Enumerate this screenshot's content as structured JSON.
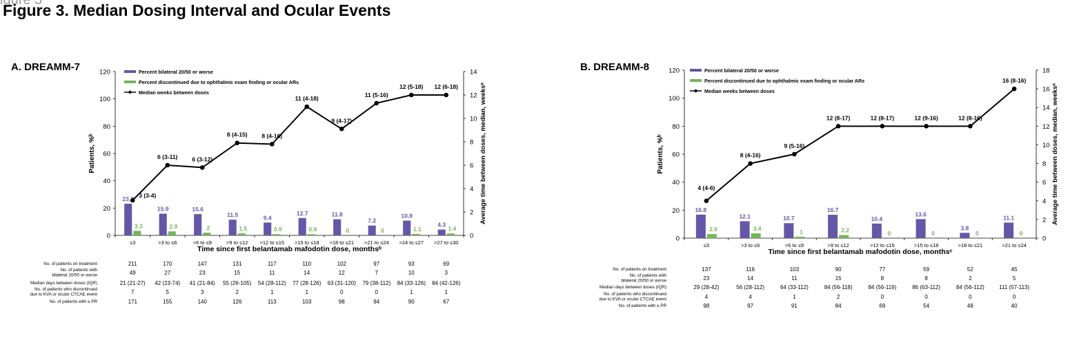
{
  "ghost_text": "igure 3",
  "title": "Figure 3. Median Dosing Interval and Ocular Events",
  "colors": {
    "bilateral": "#6557a8",
    "discontinued": "#73b55b",
    "median": "#000000"
  },
  "chart_data": [
    {
      "panel_title": "A. DREAMM-7",
      "type": "bar",
      "categories": [
        "≤3",
        ">3 to ≤6",
        ">6 to ≤9",
        ">9 to ≤12",
        ">12 to ≤15",
        ">15 to ≤18",
        ">18 to ≤21",
        ">21 to ≤24",
        ">24 to ≤27",
        ">27 to ≤30"
      ],
      "series": [
        {
          "name": "Percent bilateral 20/50 or worse",
          "kind": "bar",
          "axis": "left",
          "values": [
            23.2,
            15.9,
            15.6,
            11.5,
            9.4,
            12.7,
            11.8,
            7.2,
            10.8,
            4.3
          ],
          "labels": [
            "23.2",
            "15.9",
            "15.6",
            "11.5",
            "9.4",
            "12.7",
            "11.8",
            "7.2",
            "10.8",
            "4.3"
          ]
        },
        {
          "name": "Percent discontinued due to ophthalmic exam finding or ocular ARs",
          "kind": "bar",
          "axis": "left",
          "values": [
            3.3,
            2.9,
            2,
            1.5,
            0.9,
            0.9,
            0,
            0,
            1.1,
            1.4
          ],
          "labels": [
            "3.3",
            "2.9",
            "2",
            "1.5",
            "0.9",
            "0.9",
            "0",
            "0",
            "1.1",
            "1.4"
          ]
        },
        {
          "name": "Median weeks between doses",
          "kind": "line",
          "axis": "right",
          "values": [
            3,
            6,
            5.8,
            7.9,
            7.8,
            11,
            9.1,
            11.3,
            12,
            12
          ],
          "labels": [
            "3 (3-4)",
            "6 (3-11)",
            "6 (3-12)",
            "8 (4-15)",
            "8 (4-16)",
            "11 (4-18)",
            "9 (4-17)",
            "11 (5-16)",
            "12 (5-18)",
            "12 (6-18)"
          ]
        }
      ],
      "ylabel": "Patients, %ᵇ",
      "y2label": "Average time between doses, median, weeksᵃ",
      "xlabel": "Time since first belantamab mafodotin dose, monthsᵇ",
      "ylim": [
        0,
        120
      ],
      "yticks": [
        "0",
        "20",
        "40",
        "60",
        "80",
        "100",
        "120"
      ],
      "y2lim": [
        0,
        14
      ],
      "y2ticks": [
        "0",
        "2",
        "4",
        "6",
        "8",
        "10",
        "12",
        "14"
      ],
      "legend_position": "top-left",
      "table": {
        "row_labels": [
          "No. of patients on treatment",
          "No. of patients with\nbilateral 20/50 or worse",
          "Median days between doses (IQR)",
          "No. of patients who discontinued\ndue to KVA or ocular CTCAE event",
          "No. of patients with ≥ PR"
        ],
        "rows": [
          [
            "211",
            "170",
            "147",
            "131",
            "117",
            "110",
            "102",
            "97",
            "93",
            "69"
          ],
          [
            "49",
            "27",
            "23",
            "15",
            "11",
            "14",
            "12",
            "7",
            "10",
            "3"
          ],
          [
            "21 (21-27)",
            "42 (23-74)",
            "41 (21-84)",
            "55 (26-105)",
            "54 (28-112)",
            "77 (28-126)",
            "63 (31-120)",
            "79 (38-112)",
            "84 (33-126)",
            "84 (42-126)"
          ],
          [
            "7",
            "5",
            "3",
            "2",
            "1",
            "1",
            "0",
            "0",
            "1",
            "1"
          ],
          [
            "171",
            "155",
            "140",
            "126",
            "113",
            "103",
            "98",
            "94",
            "90",
            "67"
          ]
        ]
      }
    },
    {
      "panel_title": "B. DREAMM-8",
      "type": "bar",
      "categories": [
        "≤3",
        ">3 to ≤6",
        ">6 to ≤9",
        ">9 to ≤12",
        ">12 to ≤15",
        ">15 to ≤18",
        ">18 to ≤21",
        ">21 to ≤24"
      ],
      "series": [
        {
          "name": "Percent bilateral 20/50 or worse",
          "kind": "bar",
          "axis": "left",
          "values": [
            16.8,
            12.1,
            10.7,
            16.7,
            10.4,
            13.6,
            3.8,
            11.1
          ],
          "labels": [
            "16.8",
            "12.1",
            "10.7",
            "16.7",
            "10.4",
            "13.6",
            "3.8",
            "11.1"
          ]
        },
        {
          "name": "Percent discontinued due to ophthalmic exam finding or ocular ARs",
          "kind": "bar",
          "axis": "left",
          "values": [
            2.9,
            3.4,
            1,
            2.2,
            0,
            0,
            0,
            0
          ],
          "labels": [
            "2.9",
            "3.4",
            "1",
            "2.2",
            "0",
            "0",
            "0",
            "0"
          ]
        },
        {
          "name": "Median weeks between doses",
          "kind": "line",
          "axis": "right",
          "values": [
            4,
            8,
            9,
            12,
            12,
            12,
            12,
            16
          ],
          "labels": [
            "4 (4-6)",
            "8 (4-16)",
            "9 (5-16)",
            "12 (8-17)",
            "12 (8-17)",
            "12 (9-16)",
            "12 (8-16)",
            "16 (8-16)"
          ]
        }
      ],
      "ylabel": "Patients, %ᵇ",
      "y2label": "Average time between doses, median, weeksᵃ",
      "xlabel": "Time since first belantamab mafodotin dose, monthsᶜ",
      "ylim": [
        0,
        120
      ],
      "yticks": [
        "0",
        "20",
        "40",
        "60",
        "80",
        "100",
        "120"
      ],
      "y2lim": [
        0,
        18
      ],
      "y2ticks": [
        "0",
        "2",
        "4",
        "6",
        "8",
        "10",
        "12",
        "14",
        "16",
        "18"
      ],
      "legend_position": "top-left",
      "table": {
        "row_labels": [
          "No. of patients on treatment",
          "No. of patients with\nbilateral 20/50 or worse",
          "Median days between doses (IQR)",
          "No. of patients who discontinued\ndue to KVA or ocular CTCAE event",
          "No. of patients with ≥ PR"
        ],
        "rows": [
          [
            "137",
            "116",
            "103",
            "90",
            "77",
            "59",
            "52",
            "45"
          ],
          [
            "23",
            "14",
            "11",
            "15",
            "8",
            "8",
            "2",
            "5"
          ],
          [
            "29 (28-42)",
            "56 (28-112)",
            "64 (33-112)",
            "84 (56-118)",
            "84 (56-119)",
            "86 (63-112)",
            "84 (56-112)",
            "111 (57-113)"
          ],
          [
            "4",
            "4",
            "1",
            "2",
            "0",
            "0",
            "0",
            "0"
          ],
          [
            "98",
            "97",
            "91",
            "84",
            "69",
            "54",
            "48",
            "40"
          ]
        ]
      }
    }
  ]
}
